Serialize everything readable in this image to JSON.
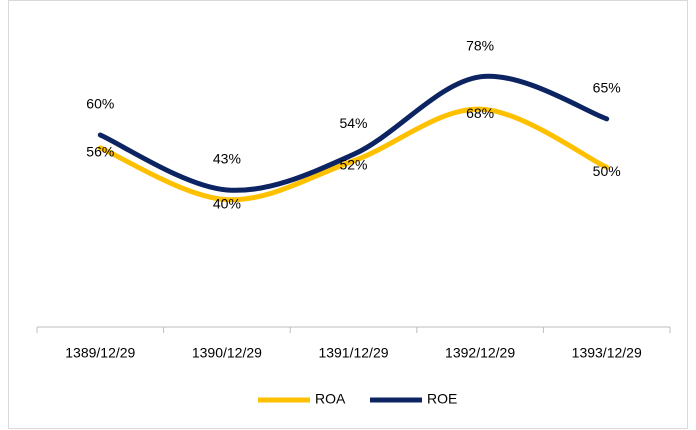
{
  "chart_data": {
    "type": "line",
    "categories": [
      "1389/12/29",
      "1390/12/29",
      "1391/12/29",
      "1392/12/29",
      "1393/12/29"
    ],
    "series": [
      {
        "name": "ROA",
        "color": "#ffc000",
        "values": [
          56,
          40,
          52,
          68,
          50
        ],
        "value_labels": [
          "56%",
          "40%",
          "52%",
          "68%",
          "50%"
        ]
      },
      {
        "name": "ROE",
        "color": "#0c2461",
        "values": [
          60,
          43,
          54,
          78,
          65
        ],
        "value_labels": [
          "60%",
          "43%",
          "54%",
          "78%",
          "65%"
        ]
      }
    ],
    "ylim": [
      0,
      90
    ],
    "smooth": true,
    "legend": "bottom"
  }
}
